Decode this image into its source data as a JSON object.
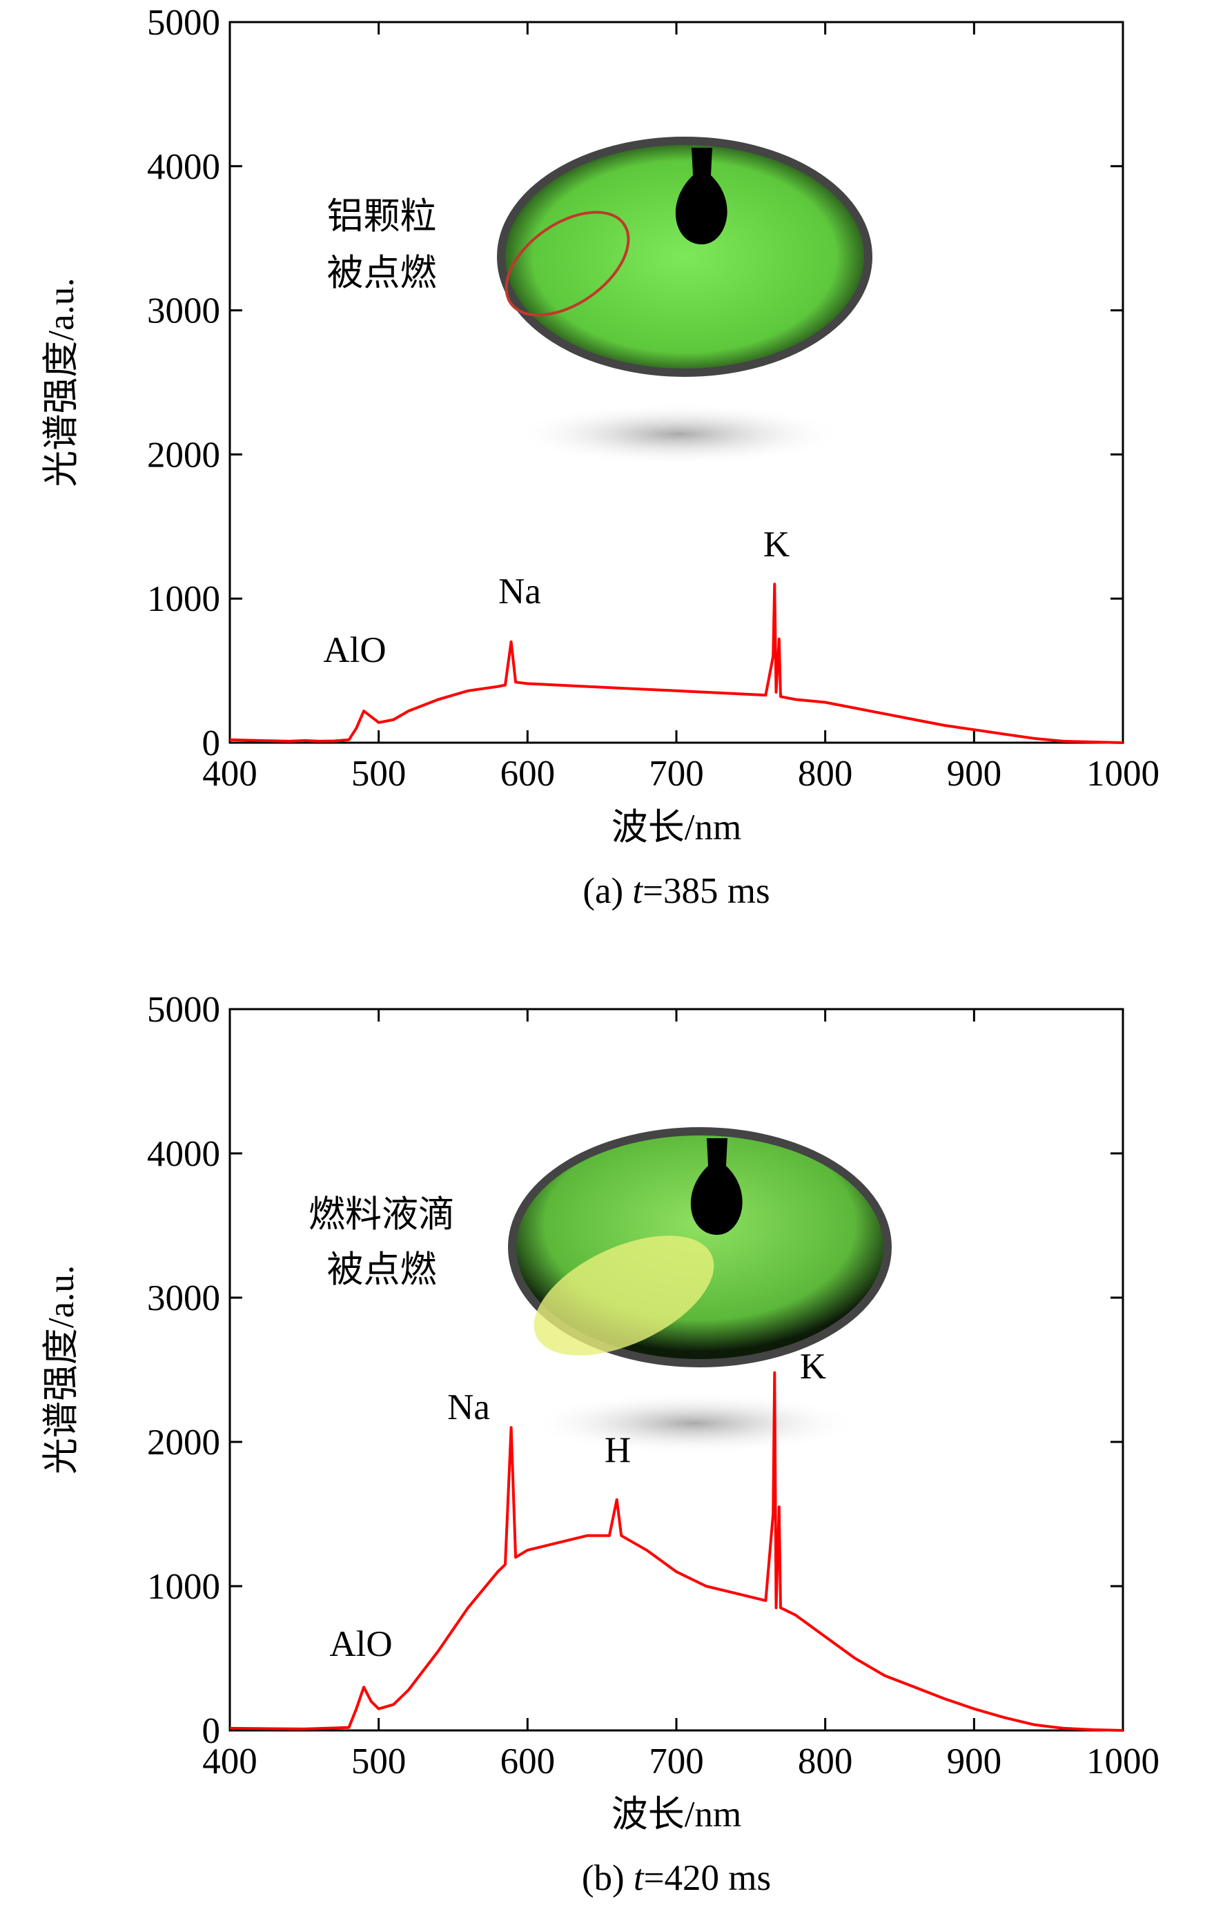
{
  "chart_data": [
    {
      "type": "line",
      "color": "#ff0000",
      "x_label": "波长/nm",
      "y_label": "光谱强度/a.u.",
      "caption": [
        "(a) ",
        "t",
        "=385 ms"
      ],
      "annotations": [
        "AlO",
        "Na",
        "K"
      ],
      "inset_text": [
        "铝颗粒",
        "被点燃"
      ],
      "xlim": [
        400,
        1000
      ],
      "xticks": [
        400,
        500,
        600,
        700,
        800,
        900,
        1000
      ],
      "ylim": [
        0,
        5000
      ],
      "yticks": [
        0,
        1000,
        2000,
        3000,
        4000,
        5000
      ],
      "x": [
        400,
        420,
        440,
        450,
        460,
        470,
        480,
        485,
        490,
        495,
        500,
        510,
        520,
        540,
        560,
        580,
        585,
        589,
        592,
        600,
        620,
        640,
        660,
        680,
        700,
        720,
        740,
        760,
        765,
        766,
        767,
        769,
        770,
        780,
        800,
        820,
        840,
        860,
        880,
        900,
        920,
        940,
        960,
        980,
        1000
      ],
      "values": [
        20,
        15,
        10,
        15,
        10,
        12,
        20,
        100,
        220,
        180,
        140,
        160,
        220,
        300,
        360,
        390,
        400,
        700,
        420,
        410,
        400,
        390,
        380,
        370,
        360,
        350,
        340,
        330,
        600,
        1100,
        350,
        720,
        320,
        300,
        280,
        240,
        200,
        160,
        120,
        90,
        60,
        30,
        10,
        5,
        0
      ]
    },
    {
      "type": "line",
      "color": "#ff0000",
      "x_label": "波长/nm",
      "y_label": "光谱强度/a.u.",
      "caption": [
        "(b) ",
        "t",
        "=420 ms"
      ],
      "annotations": [
        "AlO",
        "Na",
        "H",
        "K"
      ],
      "inset_text": [
        "燃料液滴",
        "被点燃"
      ],
      "xlim": [
        400,
        1000
      ],
      "xticks": [
        400,
        500,
        600,
        700,
        800,
        900,
        1000
      ],
      "ylim": [
        0,
        5000
      ],
      "yticks": [
        0,
        1000,
        2000,
        3000,
        4000,
        5000
      ],
      "x": [
        400,
        450,
        480,
        485,
        490,
        495,
        500,
        510,
        520,
        540,
        560,
        580,
        585,
        589,
        592,
        600,
        620,
        640,
        655,
        660,
        663,
        680,
        700,
        720,
        740,
        760,
        765,
        766,
        767,
        769,
        770,
        780,
        800,
        820,
        840,
        860,
        880,
        900,
        920,
        940,
        960,
        980,
        1000
      ],
      "values": [
        15,
        10,
        20,
        150,
        300,
        200,
        150,
        180,
        280,
        550,
        850,
        1100,
        1150,
        2100,
        1200,
        1250,
        1300,
        1350,
        1350,
        1600,
        1350,
        1250,
        1100,
        1000,
        950,
        900,
        1500,
        2480,
        850,
        1550,
        850,
        800,
        650,
        500,
        380,
        300,
        220,
        150,
        90,
        40,
        15,
        5,
        0
      ]
    }
  ]
}
